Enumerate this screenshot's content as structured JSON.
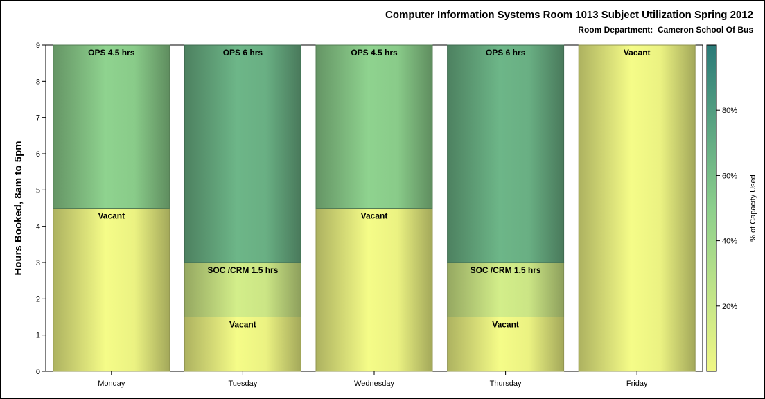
{
  "chart_data": {
    "type": "bar",
    "stacked": true,
    "title": "Computer Information Systems Room 1013 Subject Utilization Spring 2012",
    "subtitle": "Room Department:  Cameron School Of Bus",
    "xlabel": "",
    "ylabel": "Hours Booked, 8am to 5pm",
    "ylim": [
      0,
      9
    ],
    "yticks": [
      "0",
      "1",
      "2",
      "3",
      "4",
      "5",
      "6",
      "7",
      "8",
      "9"
    ],
    "categories": [
      "Monday",
      "Tuesday",
      "Wednesday",
      "Thursday",
      "Friday"
    ],
    "bars": [
      {
        "segments": [
          {
            "label": "Vacant",
            "value": 4.5
          },
          {
            "label": "OPS 4.5 hrs",
            "value": 4.5
          }
        ]
      },
      {
        "segments": [
          {
            "label": "Vacant",
            "value": 1.5
          },
          {
            "label": "SOC /CRM 1.5 hrs",
            "value": 1.5
          },
          {
            "label": "OPS 6 hrs",
            "value": 6
          }
        ]
      },
      {
        "segments": [
          {
            "label": "Vacant",
            "value": 4.5
          },
          {
            "label": "OPS 4.5 hrs",
            "value": 4.5
          }
        ]
      },
      {
        "segments": [
          {
            "label": "Vacant",
            "value": 1.5
          },
          {
            "label": "SOC /CRM 1.5 hrs",
            "value": 1.5
          },
          {
            "label": "OPS 6 hrs",
            "value": 6
          }
        ]
      },
      {
        "segments": [
          {
            "label": "Vacant",
            "value": 9
          }
        ]
      }
    ],
    "colorbar": {
      "label": "% of Capacity Used",
      "range": [
        0,
        100
      ],
      "ticks": [
        "20%",
        "40%",
        "60%",
        "80%"
      ],
      "tick_values": [
        20,
        40,
        60,
        80
      ],
      "colors": [
        "#f0f785",
        "#8ccf8c",
        "#2a7a78"
      ]
    },
    "grid": false,
    "legend": "colorbar-right"
  }
}
